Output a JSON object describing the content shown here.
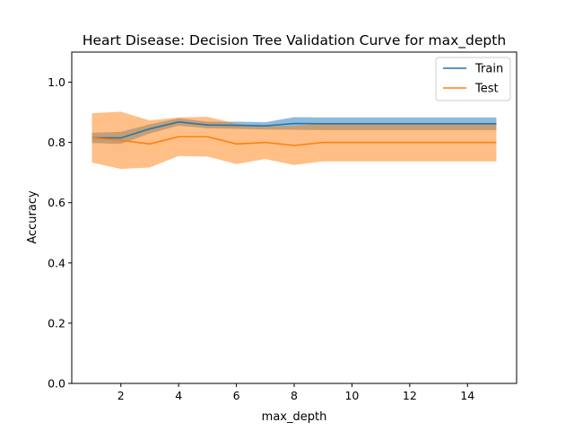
{
  "chart_data": {
    "type": "line",
    "title": "Heart Disease: Decision Tree Validation Curve for max_depth",
    "xlabel": "max_depth",
    "ylabel": "Accuracy",
    "xlim": [
      0.3,
      15.7
    ],
    "ylim": [
      0.0,
      1.1
    ],
    "xticks": [
      2,
      4,
      6,
      8,
      10,
      12,
      14
    ],
    "yticks": [
      0.0,
      0.2,
      0.4,
      0.6,
      0.8,
      1.0
    ],
    "grid": false,
    "legend_position": "top-right",
    "x": [
      1,
      2,
      3,
      4,
      5,
      6,
      7,
      8,
      9,
      10,
      11,
      12,
      13,
      14,
      15
    ],
    "series": [
      {
        "name": "Train",
        "color": "#1f77b4",
        "values": [
          0.815,
          0.815,
          0.845,
          0.868,
          0.858,
          0.857,
          0.855,
          0.863,
          0.862,
          0.862,
          0.862,
          0.862,
          0.862,
          0.862,
          0.862
        ],
        "lower": [
          0.798,
          0.795,
          0.83,
          0.856,
          0.847,
          0.845,
          0.843,
          0.842,
          0.841,
          0.841,
          0.841,
          0.841,
          0.841,
          0.841,
          0.841
        ],
        "upper": [
          0.832,
          0.835,
          0.86,
          0.88,
          0.869,
          0.869,
          0.867,
          0.884,
          0.883,
          0.883,
          0.883,
          0.883,
          0.883,
          0.883,
          0.883
        ]
      },
      {
        "name": "Test",
        "color": "#ff7f0e",
        "values": [
          0.815,
          0.807,
          0.795,
          0.819,
          0.819,
          0.795,
          0.8,
          0.79,
          0.8,
          0.8,
          0.8,
          0.8,
          0.8,
          0.8,
          0.8
        ],
        "lower": [
          0.733,
          0.712,
          0.717,
          0.755,
          0.753,
          0.728,
          0.745,
          0.725,
          0.737,
          0.737,
          0.737,
          0.737,
          0.737,
          0.737,
          0.737
        ],
        "upper": [
          0.897,
          0.902,
          0.873,
          0.883,
          0.885,
          0.862,
          0.855,
          0.855,
          0.863,
          0.863,
          0.863,
          0.863,
          0.863,
          0.863,
          0.863
        ]
      }
    ]
  }
}
